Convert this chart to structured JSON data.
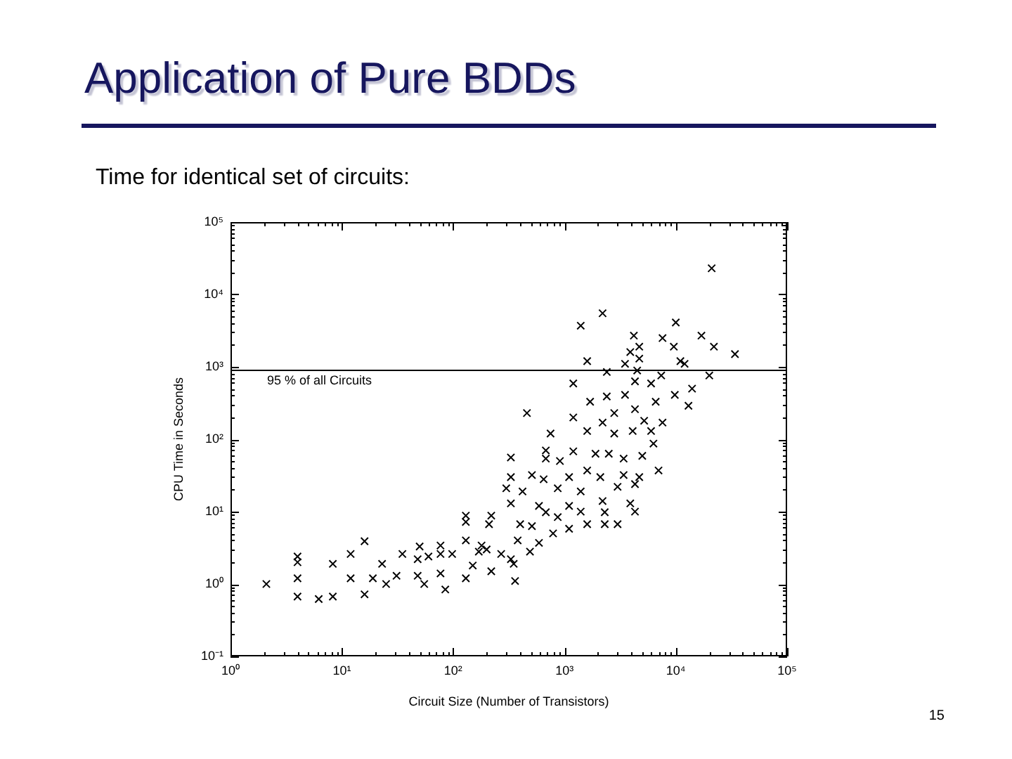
{
  "chart_data": {
    "type": "scatter",
    "title": "Application of Pure BDDs",
    "subtitle": "Time for identical set of circuits:",
    "xlabel": "Circuit Size (Number of Transistors)",
    "ylabel": "CPU Time in Seconds",
    "annotations": [
      "15"
    ],
    "log": "xy",
    "marker": "cross",
    "xlim": [
      1,
      100000
    ],
    "ylim": [
      0.1,
      100000
    ],
    "xticks": [
      {
        "value": 1,
        "label": "10⁰"
      },
      {
        "value": 2,
        "label": null
      },
      {
        "value": 3,
        "label": null
      },
      {
        "value": 4,
        "label": null
      },
      {
        "value": 5,
        "label": null
      },
      {
        "value": 6,
        "label": null
      },
      {
        "value": 7,
        "label": null
      },
      {
        "value": 8,
        "label": null
      },
      {
        "value": 9,
        "label": null
      },
      {
        "value": 10,
        "label": "10¹"
      },
      {
        "value": 20,
        "label": null
      },
      {
        "value": 30,
        "label": null
      },
      {
        "value": 40,
        "label": null
      },
      {
        "value": 50,
        "label": null
      },
      {
        "value": 60,
        "label": null
      },
      {
        "value": 70,
        "label": null
      },
      {
        "value": 80,
        "label": null
      },
      {
        "value": 90,
        "label": null
      },
      {
        "value": 100,
        "label": "10²"
      },
      {
        "value": 200,
        "label": null
      },
      {
        "value": 300,
        "label": null
      },
      {
        "value": 400,
        "label": null
      },
      {
        "value": 500,
        "label": null
      },
      {
        "value": 600,
        "label": null
      },
      {
        "value": 700,
        "label": null
      },
      {
        "value": 800,
        "label": null
      },
      {
        "value": 900,
        "label": null
      },
      {
        "value": 1000,
        "label": "10³"
      },
      {
        "value": 2000,
        "label": null
      },
      {
        "value": 3000,
        "label": null
      },
      {
        "value": 4000,
        "label": null
      },
      {
        "value": 5000,
        "label": null
      },
      {
        "value": 6000,
        "label": null
      },
      {
        "value": 7000,
        "label": null
      },
      {
        "value": 8000,
        "label": null
      },
      {
        "value": 9000,
        "label": null
      },
      {
        "value": 10000,
        "label": "10⁴"
      },
      {
        "value": 20000,
        "label": null
      },
      {
        "value": 30000,
        "label": null
      },
      {
        "value": 40000,
        "label": null
      },
      {
        "value": 50000,
        "label": null
      },
      {
        "value": 60000,
        "label": null
      },
      {
        "value": 70000,
        "label": null
      },
      {
        "value": 80000,
        "label": null
      },
      {
        "value": 90000,
        "label": null
      },
      {
        "value": 100000,
        "label": "10⁵"
      }
    ],
    "yticks": [
      {
        "value": 0.1,
        "label": "10⁻¹"
      },
      {
        "value": 0.2,
        "label": null
      },
      {
        "value": 0.3,
        "label": null
      },
      {
        "value": 0.4,
        "label": null
      },
      {
        "value": 0.5,
        "label": null
      },
      {
        "value": 0.6,
        "label": null
      },
      {
        "value": 0.7,
        "label": null
      },
      {
        "value": 0.8,
        "label": null
      },
      {
        "value": 0.9,
        "label": null
      },
      {
        "value": 1,
        "label": "10⁰"
      },
      {
        "value": 2,
        "label": null
      },
      {
        "value": 3,
        "label": null
      },
      {
        "value": 4,
        "label": null
      },
      {
        "value": 5,
        "label": null
      },
      {
        "value": 6,
        "label": null
      },
      {
        "value": 7,
        "label": null
      },
      {
        "value": 8,
        "label": null
      },
      {
        "value": 9,
        "label": null
      },
      {
        "value": 10,
        "label": "10¹"
      },
      {
        "value": 20,
        "label": null
      },
      {
        "value": 30,
        "label": null
      },
      {
        "value": 40,
        "label": null
      },
      {
        "value": 50,
        "label": null
      },
      {
        "value": 60,
        "label": null
      },
      {
        "value": 70,
        "label": null
      },
      {
        "value": 80,
        "label": null
      },
      {
        "value": 90,
        "label": null
      },
      {
        "value": 100,
        "label": "10²"
      },
      {
        "value": 200,
        "label": null
      },
      {
        "value": 300,
        "label": null
      },
      {
        "value": 400,
        "label": null
      },
      {
        "value": 500,
        "label": null
      },
      {
        "value": 600,
        "label": null
      },
      {
        "value": 700,
        "label": null
      },
      {
        "value": 800,
        "label": null
      },
      {
        "value": 900,
        "label": null
      },
      {
        "value": 1000,
        "label": "10³"
      },
      {
        "value": 2000,
        "label": null
      },
      {
        "value": 3000,
        "label": null
      },
      {
        "value": 4000,
        "label": null
      },
      {
        "value": 5000,
        "label": null
      },
      {
        "value": 6000,
        "label": null
      },
      {
        "value": 7000,
        "label": null
      },
      {
        "value": 8000,
        "label": null
      },
      {
        "value": 9000,
        "label": null
      },
      {
        "value": 10000,
        "label": "10⁴"
      },
      {
        "value": 20000,
        "label": null
      },
      {
        "value": 30000,
        "label": null
      },
      {
        "value": 40000,
        "label": null
      },
      {
        "value": 50000,
        "label": null
      },
      {
        "value": 60000,
        "label": null
      },
      {
        "value": 70000,
        "label": null
      },
      {
        "value": 80000,
        "label": null
      },
      {
        "value": 90000,
        "label": null
      },
      {
        "value": 100000,
        "label": "10⁵"
      }
    ],
    "ref_lines": [
      {
        "axis": "y",
        "value": 900,
        "label": "95 % of all Circuits",
        "color": "#000000"
      }
    ],
    "x": [
      21000,
      2200,
      1400,
      10000,
      4200,
      17000,
      7600,
      4700,
      9600,
      22000,
      3900,
      34000,
      1600,
      4700,
      11000,
      12000,
      3500,
      2400,
      4500,
      20000,
      7400,
      1200,
      460,
      6000,
      4300,
      1700,
      2400,
      3500,
      6600,
      9800,
      14000,
      13000,
      1200,
      2200,
      2800,
      4300,
      5200,
      7600,
      1600,
      2800,
      4100,
      6000,
      750,
      6300,
      330,
      680,
      1200,
      910,
      680,
      1900,
      2500,
      3400,
      5000,
      7000,
      330,
      510,
      300,
      650,
      1100,
      1600,
      2100,
      3400,
      4700,
      4300,
      420,
      870,
      1400,
      3000,
      330,
      590,
      1100,
      2200,
      3900,
      130,
      220,
      2.1,
      4,
      4,
      4,
      4,
      6.2,
      8.3,
      8.3,
      12,
      12,
      16,
      16,
      19,
      23,
      25,
      31,
      35,
      48,
      48,
      50,
      60,
      55,
      77,
      77,
      77,
      85,
      98,
      130,
      130,
      130,
      150,
      170,
      180,
      210,
      200,
      220,
      270,
      330,
      360,
      350,
      380,
      400,
      510,
      490,
      590,
      680,
      790,
      870,
      1100,
      1400,
      1600,
      2300,
      2300,
      3000,
      4300
    ],
    "series": [
      {
        "color": "#000000",
        "values": [
          23000,
          5500,
          3700,
          4100,
          2700,
          2700,
          2500,
          1900,
          1900,
          1900,
          1600,
          1500,
          1200,
          1300,
          1200,
          1100,
          1100,
          850,
          890,
          760,
          760,
          590,
          230,
          590,
          630,
          330,
          390,
          410,
          330,
          410,
          500,
          290,
          200,
          170,
          230,
          260,
          180,
          170,
          130,
          120,
          130,
          130,
          120,
          87,
          56,
          70,
          68,
          50,
          54,
          63,
          63,
          54,
          59,
          37,
          30,
          32,
          21,
          28,
          30,
          37,
          30,
          32,
          30,
          24,
          19,
          21,
          19,
          22,
          13,
          12,
          12,
          14,
          13,
          8.8,
          8.8,
          1.0,
          2.4,
          2.0,
          1.2,
          0.67,
          0.62,
          0.67,
          1.9,
          2.6,
          1.2,
          3.9,
          0.72,
          1.2,
          1.9,
          1.0,
          1.3,
          2.6,
          1.3,
          2.2,
          3.3,
          2.4,
          1.0,
          3.4,
          2.6,
          1.4,
          0.84,
          2.6,
          1.2,
          4.0,
          7.2,
          1.8,
          2.8,
          3.4,
          6.7,
          3.0,
          1.5,
          2.6,
          2.2,
          1.1,
          1.9,
          4.0,
          6.7,
          6.3,
          2.8,
          3.7,
          9.8,
          5.0,
          8.4,
          5.8,
          10,
          6.7,
          9.8,
          6.7,
          6.7,
          10
        ]
      }
    ]
  }
}
